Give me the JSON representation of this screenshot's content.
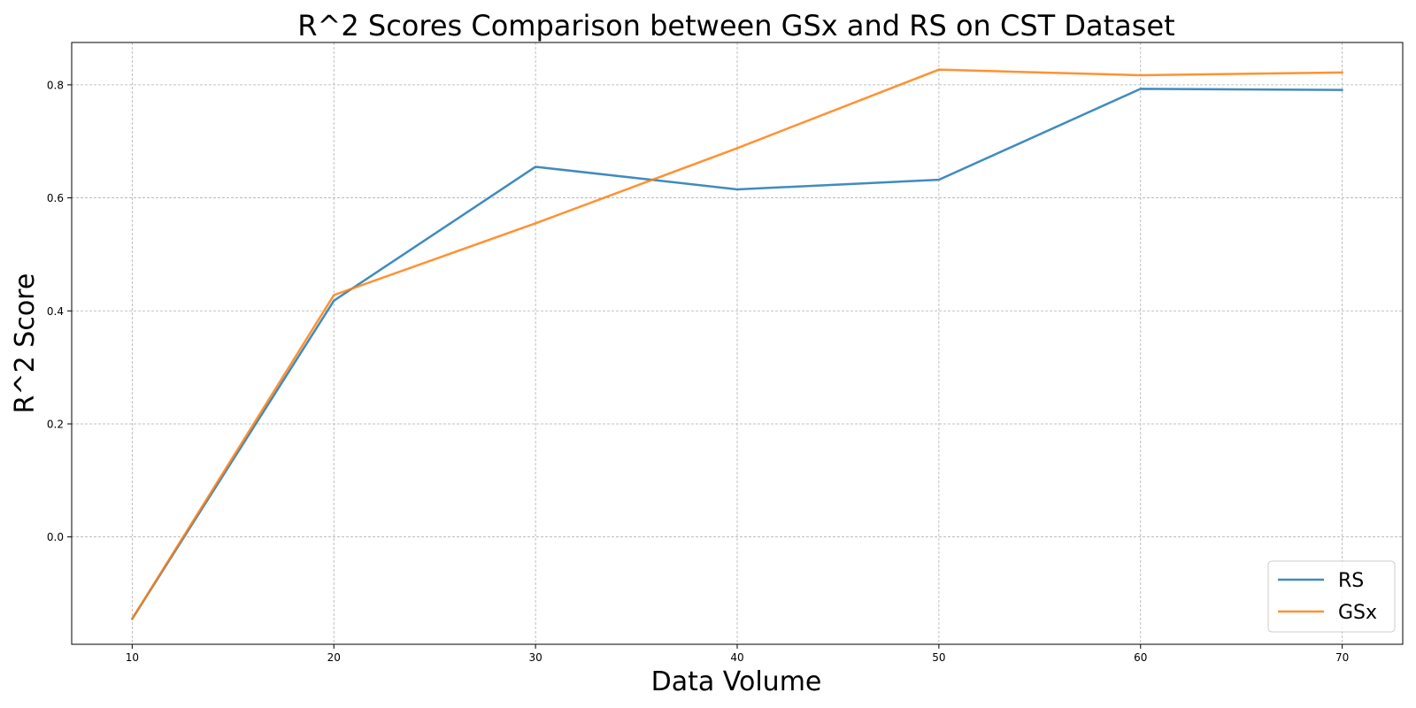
{
  "chart_data": {
    "type": "line",
    "title": "R^2 Scores Comparison between GSx and RS on CST Dataset",
    "xlabel": "Data Volume",
    "ylabel": "R^2 Score",
    "x": [
      10,
      20,
      30,
      40,
      50,
      60,
      70
    ],
    "xlim": [
      7,
      73
    ],
    "ylim": [
      -0.19,
      0.875
    ],
    "xticks": [
      10,
      20,
      30,
      40,
      50,
      60,
      70
    ],
    "yticks": [
      0.0,
      0.2,
      0.4,
      0.6,
      0.8
    ],
    "ytick_labels": [
      "0.0",
      "0.2",
      "0.4",
      "0.6",
      "0.8"
    ],
    "grid": true,
    "legend_position": "bottom-right",
    "series": [
      {
        "name": "RS",
        "color": "#1f77b4",
        "values": [
          -0.145,
          0.418,
          0.655,
          0.615,
          0.632,
          0.793,
          0.791
        ]
      },
      {
        "name": "GSx",
        "color": "#ff7f0e",
        "values": [
          -0.145,
          0.428,
          0.555,
          0.688,
          0.827,
          0.817,
          0.822
        ]
      }
    ]
  }
}
